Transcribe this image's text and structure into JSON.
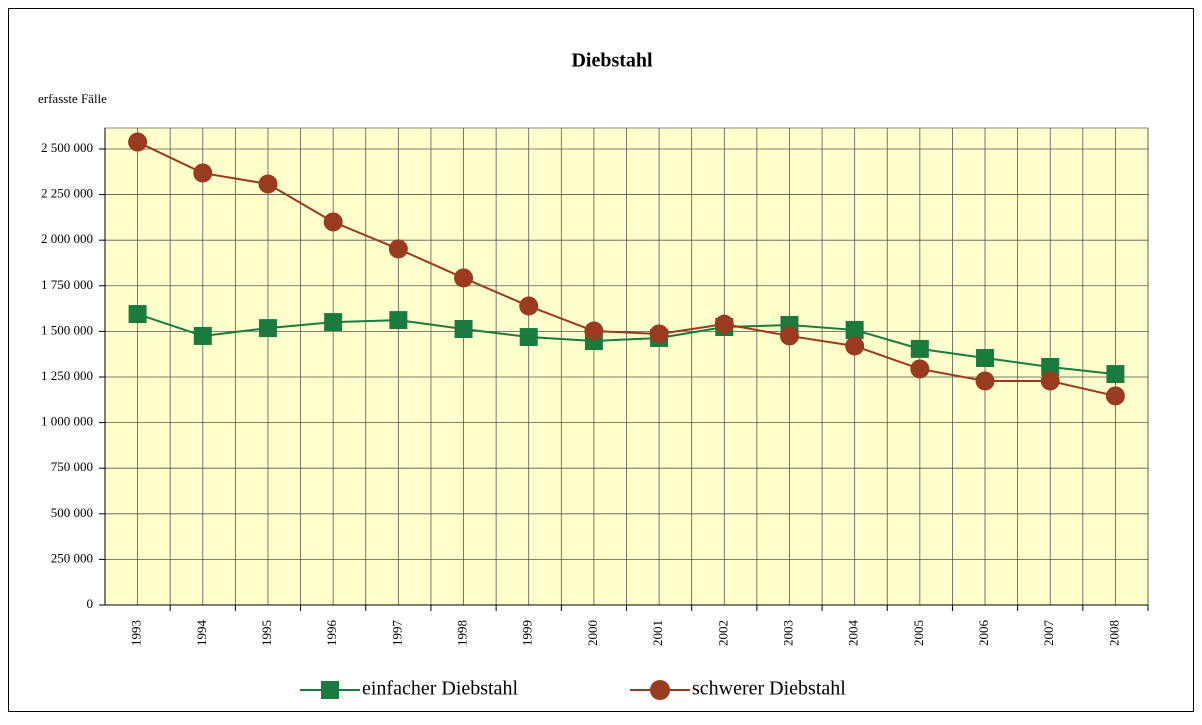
{
  "chart_data": {
    "type": "line",
    "title": "Diebstahl",
    "y_label": "erfasste Fälle",
    "categories": [
      "1993",
      "1994",
      "1995",
      "1996",
      "1997",
      "1998",
      "1999",
      "2000",
      "2001",
      "2002",
      "2003",
      "2004",
      "2005",
      "2006",
      "2007",
      "2008"
    ],
    "series": [
      {
        "name": "einfacher Diebstahl",
        "color": "#1b7a3e",
        "marker": "square",
        "values": [
          1595000,
          1475000,
          1518000,
          1551000,
          1562000,
          1513000,
          1469000,
          1447000,
          1464000,
          1524000,
          1535000,
          1508000,
          1404000,
          1354000,
          1305000,
          1266000
        ]
      },
      {
        "name": "schwerer Diebstahl",
        "color": "#9a3a1e",
        "marker": "circle",
        "values": [
          2538000,
          2368000,
          2308000,
          2100000,
          1952000,
          1793000,
          1639000,
          1502000,
          1486000,
          1540000,
          1475000,
          1420000,
          1294000,
          1228000,
          1228000,
          1146000
        ]
      }
    ],
    "ylim": [
      0,
      2615000
    ],
    "yticks": [
      0,
      {
        "value": 250000,
        "label": "250 000"
      },
      {
        "value": 500000,
        "label": "500 000"
      },
      {
        "value": 750000,
        "label": "750 000"
      },
      {
        "value": 1000000,
        "label": "1 000 000"
      },
      {
        "value": 1250000,
        "label": "1 250 000"
      },
      {
        "value": 1500000,
        "label": "1 500 000"
      },
      {
        "value": 1750000,
        "label": "1 750 000"
      },
      {
        "value": 2000000,
        "label": "2 000 000"
      },
      {
        "value": 2250000,
        "label": "2 250 000"
      },
      {
        "value": 2500000,
        "label": "2 500 000"
      }
    ],
    "grid": true,
    "plot_background": "#ffffcc",
    "legend": "bottom"
  }
}
